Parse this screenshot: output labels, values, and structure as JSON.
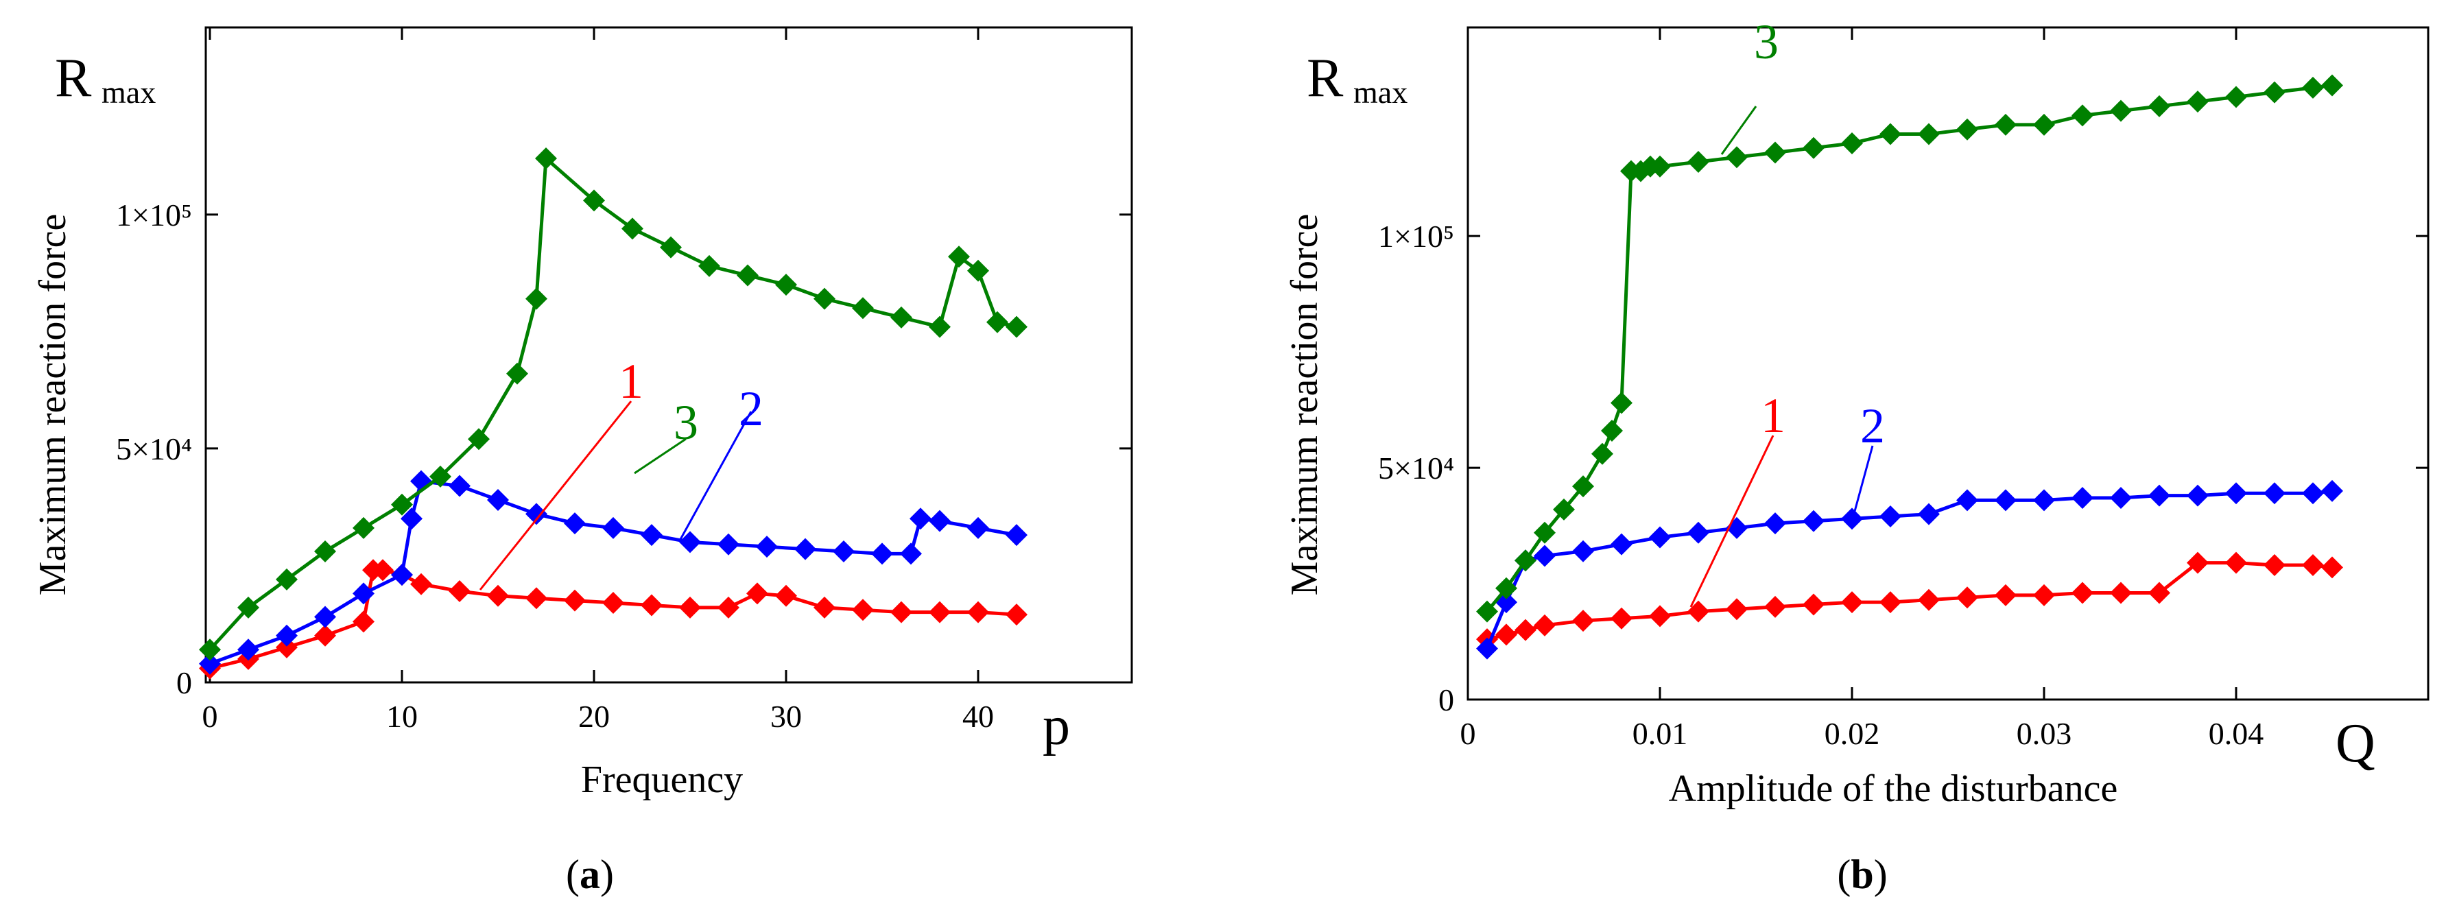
{
  "chart_data": [
    {
      "type": "line",
      "panel_label": "a",
      "y_symbol": "R",
      "y_symbol_sub": "max",
      "ylabel": "Maximum reaction force",
      "x_symbol": "p",
      "xlabel": "Frequency",
      "xlim": [
        0,
        48
      ],
      "ylim": [
        0,
        140000
      ],
      "x_ticks": [
        "0",
        "10",
        "20",
        "30",
        "40"
      ],
      "x_tick_values": [
        0,
        10,
        20,
        30,
        40
      ],
      "y_ticks": [
        "0",
        "5×10⁴",
        "1×10⁵"
      ],
      "y_tick_values": [
        0,
        50000,
        100000
      ],
      "series": [
        {
          "name": "1",
          "color": "#ff0000",
          "x": [
            0,
            2,
            4,
            6,
            8,
            8.5,
            9,
            10,
            11,
            13,
            15,
            17,
            19,
            21,
            23,
            25,
            27,
            28.5,
            30,
            32,
            34,
            36,
            38,
            40,
            42
          ],
          "y": [
            3000,
            5000,
            7500,
            10000,
            13000,
            24000,
            24000,
            23000,
            21000,
            19500,
            18500,
            18000,
            17500,
            17000,
            16500,
            16000,
            16000,
            19000,
            18500,
            16000,
            15500,
            15000,
            15000,
            15000,
            14500
          ]
        },
        {
          "name": "2",
          "color": "#0000ff",
          "x": [
            0,
            2,
            4,
            6,
            8,
            10,
            10.5,
            11,
            13,
            15,
            17,
            19,
            21,
            23,
            25,
            27,
            29,
            31,
            33,
            35,
            36.5,
            37,
            38,
            40,
            42
          ],
          "y": [
            4000,
            7000,
            10000,
            14000,
            19000,
            23000,
            35000,
            43000,
            42000,
            39000,
            36000,
            34000,
            33000,
            31500,
            30000,
            29500,
            29000,
            28500,
            28000,
            27500,
            27500,
            35000,
            34500,
            33000,
            31500
          ]
        },
        {
          "name": "3",
          "color": "#008000",
          "x": [
            0,
            2,
            4,
            6,
            8,
            10,
            12,
            14,
            16,
            17,
            17.5,
            20,
            22,
            24,
            26,
            28,
            30,
            32,
            34,
            36,
            38,
            39,
            40,
            41,
            42
          ],
          "y": [
            7000,
            16000,
            22000,
            28000,
            33000,
            38000,
            44000,
            52000,
            66000,
            82000,
            112000,
            103000,
            97000,
            93000,
            89000,
            87000,
            85000,
            82000,
            80000,
            78000,
            76000,
            91000,
            88000,
            77000,
            76000
          ]
        }
      ]
    },
    {
      "type": "line",
      "panel_label": "b",
      "y_symbol": "R",
      "y_symbol_sub": "max",
      "ylabel": "Maximum reaction force",
      "x_symbol": "Q",
      "xlabel": "Amplitude  of the disturbance",
      "xlim": [
        0,
        0.05
      ],
      "ylim": [
        0,
        145000
      ],
      "x_ticks": [
        "0",
        "0.01",
        "0.02",
        "0.03",
        "0.04"
      ],
      "x_tick_values": [
        0,
        0.01,
        0.02,
        0.03,
        0.04
      ],
      "y_ticks": [
        "0",
        "5×10⁴",
        "1×10⁵"
      ],
      "y_tick_values": [
        0,
        50000,
        100000
      ],
      "series": [
        {
          "name": "1",
          "color": "#ff0000",
          "x": [
            0.001,
            0.002,
            0.003,
            0.004,
            0.006,
            0.008,
            0.01,
            0.012,
            0.014,
            0.016,
            0.018,
            0.02,
            0.022,
            0.024,
            0.026,
            0.028,
            0.03,
            0.032,
            0.034,
            0.036,
            0.038,
            0.04,
            0.042,
            0.044,
            0.045
          ],
          "y": [
            13000,
            14000,
            15000,
            16000,
            17000,
            17500,
            18000,
            19000,
            19500,
            20000,
            20500,
            21000,
            21000,
            21500,
            22000,
            22500,
            22500,
            23000,
            23000,
            23000,
            29500,
            29500,
            29000,
            29000,
            28500
          ]
        },
        {
          "name": "2",
          "color": "#0000ff",
          "x": [
            0.001,
            0.002,
            0.003,
            0.004,
            0.006,
            0.008,
            0.01,
            0.012,
            0.014,
            0.016,
            0.018,
            0.02,
            0.022,
            0.024,
            0.026,
            0.028,
            0.03,
            0.032,
            0.034,
            0.036,
            0.038,
            0.04,
            0.042,
            0.044,
            0.045
          ],
          "y": [
            11000,
            21000,
            30000,
            31000,
            32000,
            33500,
            35000,
            36000,
            37000,
            38000,
            38500,
            39000,
            39500,
            40000,
            43000,
            43000,
            43000,
            43500,
            43500,
            44000,
            44000,
            44500,
            44500,
            44500,
            45000
          ]
        },
        {
          "name": "3",
          "color": "#008000",
          "x": [
            0.001,
            0.002,
            0.003,
            0.004,
            0.005,
            0.006,
            0.007,
            0.0075,
            0.008,
            0.0085,
            0.009,
            0.0095,
            0.01,
            0.012,
            0.014,
            0.016,
            0.018,
            0.02,
            0.022,
            0.024,
            0.026,
            0.028,
            0.03,
            0.032,
            0.034,
            0.036,
            0.038,
            0.04,
            0.042,
            0.044,
            0.045
          ],
          "y": [
            19000,
            24000,
            30000,
            36000,
            41000,
            46000,
            53000,
            58000,
            64000,
            114000,
            114000,
            115000,
            115000,
            116000,
            117000,
            118000,
            119000,
            120000,
            122000,
            122000,
            123000,
            124000,
            124000,
            126000,
            127000,
            128000,
            129000,
            130000,
            131000,
            132000,
            132500
          ]
        }
      ]
    }
  ],
  "captions": [
    "(a)",
    "(b)"
  ]
}
